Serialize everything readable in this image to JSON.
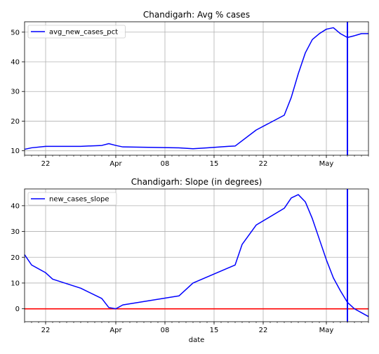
{
  "chart_data": [
    {
      "type": "line",
      "title": "Chandigarh: Avg % cases",
      "xlabel": "",
      "ylabel": "",
      "ylim": [
        8.5,
        53.5
      ],
      "yticks": [
        10,
        20,
        30,
        40,
        50
      ],
      "xlim": [
        0,
        49
      ],
      "xticks": [
        {
          "x": 3,
          "label": "22"
        },
        {
          "x": 13,
          "label": "Apr"
        },
        {
          "x": 20,
          "label": "08"
        },
        {
          "x": 27,
          "label": "15"
        },
        {
          "x": 34,
          "label": "22"
        },
        {
          "x": 43,
          "label": "May"
        }
      ],
      "grid": true,
      "legend": "upper-left",
      "series": [
        {
          "name": "avg_new_cases_pct",
          "color": "#0000ff",
          "points": [
            [
              0,
              10.5
            ],
            [
              1,
              11.0
            ],
            [
              3,
              11.5
            ],
            [
              8,
              11.5
            ],
            [
              11,
              11.8
            ],
            [
              12,
              12.4
            ],
            [
              13,
              11.8
            ],
            [
              14,
              11.3
            ],
            [
              22,
              11.0
            ],
            [
              24,
              10.7
            ],
            [
              26,
              11.0
            ],
            [
              29,
              11.5
            ],
            [
              30,
              11.6
            ],
            [
              33,
              17.0
            ],
            [
              37,
              22.0
            ],
            [
              38,
              28.0
            ],
            [
              39,
              36.0
            ],
            [
              40,
              43.0
            ],
            [
              41,
              47.5
            ],
            [
              42,
              49.5
            ],
            [
              43,
              51.0
            ],
            [
              44,
              51.5
            ],
            [
              45,
              49.5
            ],
            [
              46,
              48.2
            ],
            [
              47,
              48.8
            ],
            [
              48,
              49.5
            ],
            [
              49,
              49.5
            ]
          ]
        }
      ],
      "vlines": [
        {
          "x": 46,
          "color": "#0000ff"
        }
      ]
    },
    {
      "type": "line",
      "title": "Chandigarh: Slope (in degrees)",
      "xlabel": "date",
      "ylabel": "",
      "ylim": [
        -5,
        46.5
      ],
      "yticks": [
        0,
        10,
        20,
        30,
        40
      ],
      "xlim": [
        0,
        49
      ],
      "xticks": [
        {
          "x": 3,
          "label": "22"
        },
        {
          "x": 13,
          "label": "Apr"
        },
        {
          "x": 20,
          "label": "08"
        },
        {
          "x": 27,
          "label": "15"
        },
        {
          "x": 34,
          "label": "22"
        },
        {
          "x": 43,
          "label": "May"
        }
      ],
      "grid": true,
      "legend": "upper-left",
      "series": [
        {
          "name": "new_cases_slope",
          "color": "#0000ff",
          "points": [
            [
              0,
              21.0
            ],
            [
              1,
              17.0
            ],
            [
              3,
              14.0
            ],
            [
              4,
              11.5
            ],
            [
              8,
              8.0
            ],
            [
              11,
              4.0
            ],
            [
              12,
              0.5
            ],
            [
              13,
              0.0
            ],
            [
              14,
              1.5
            ],
            [
              22,
              5.0
            ],
            [
              24,
              10.0
            ],
            [
              30,
              17.0
            ],
            [
              31,
              25.0
            ],
            [
              33,
              32.5
            ],
            [
              37,
              39.0
            ],
            [
              38,
              43.0
            ],
            [
              39,
              44.3
            ],
            [
              40,
              41.5
            ],
            [
              41,
              35.0
            ],
            [
              42,
              27.0
            ],
            [
              43,
              19.0
            ],
            [
              44,
              12.0
            ],
            [
              45,
              7.0
            ],
            [
              46,
              2.5
            ],
            [
              47,
              0.0
            ],
            [
              48,
              -1.5
            ],
            [
              49,
              -3.0
            ]
          ]
        }
      ],
      "vlines": [
        {
          "x": 46,
          "color": "#0000ff"
        }
      ],
      "hlines": [
        {
          "y": 0,
          "color": "#ff0000"
        }
      ]
    }
  ]
}
